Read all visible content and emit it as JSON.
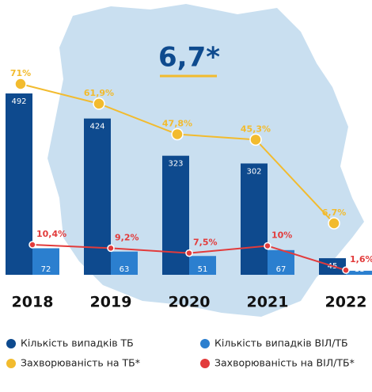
{
  "chart_data": {
    "type": "bar_line",
    "annotation": "6,7*",
    "categories": [
      "2018",
      "2019",
      "2020",
      "2021",
      "2022"
    ],
    "series": [
      {
        "name": "Кількість випадків ТБ",
        "color": "#0e4a8e",
        "kind": "bar",
        "values": [
          492,
          424,
          323,
          302,
          45
        ]
      },
      {
        "name": "Кількість випадків ВІЛ/ТБ",
        "color": "#2b7fcf",
        "kind": "bar",
        "values": [
          72,
          63,
          51,
          67,
          11
        ]
      },
      {
        "name": "Захворюваність на ТБ*",
        "color": "#f2bb2e",
        "kind": "line",
        "values": [
          71,
          61.9,
          47.8,
          45.3,
          6.7
        ],
        "value_labels": [
          "71%",
          "61,9%",
          "47,8%",
          "45,3%",
          "6,7%"
        ]
      },
      {
        "name": "Захворюваність на ВІЛ/ТБ*",
        "color": "#e23b3b",
        "kind": "line",
        "values": [
          10.4,
          9.2,
          7.5,
          10,
          1.6
        ],
        "value_labels": [
          "10,4%",
          "9,2%",
          "7,5%",
          "10%",
          "1,6%"
        ]
      }
    ]
  }
}
